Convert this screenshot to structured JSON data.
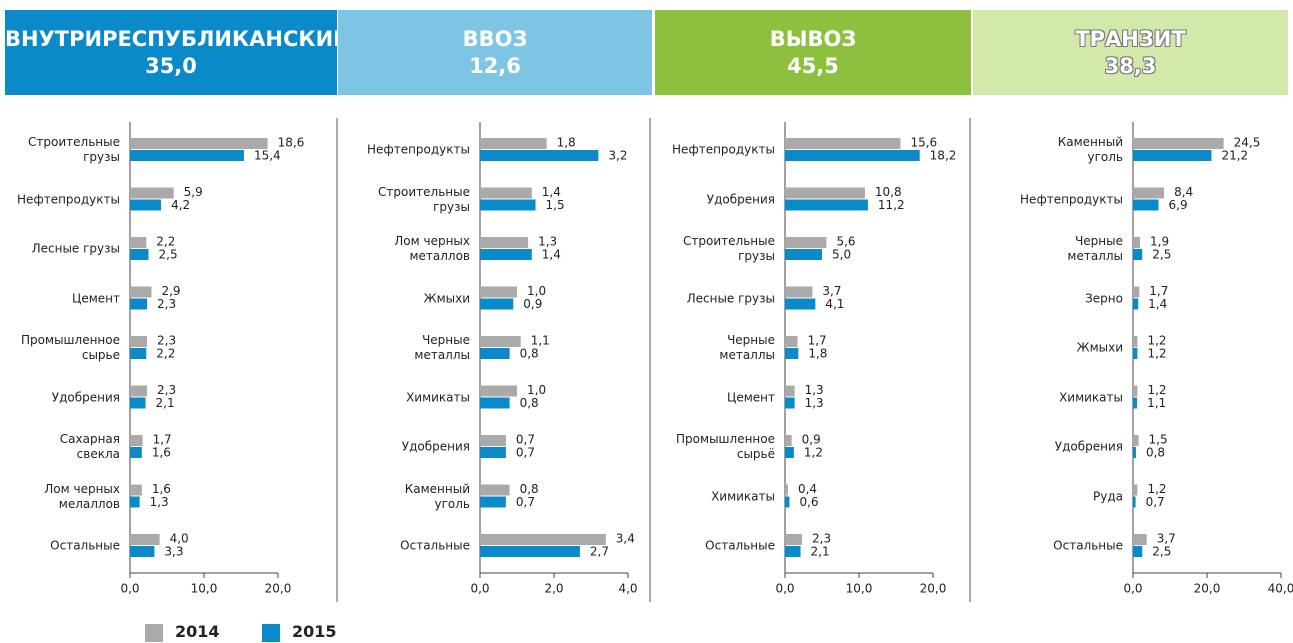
{
  "chart_data": [
    {
      "type": "bar",
      "orientation": "horizontal",
      "title": "ВНУТРИРЕСПУБЛИКАНСКИЕ",
      "subtitle": "35,0",
      "header_color": "#0a8ac9",
      "categories": [
        "Строительные\nгрузы",
        "Нефтепродукты",
        "Лесные грузы",
        "Цемент",
        "Промышленное\nсырье",
        "Удобрения",
        "Сахарная\nсвекла",
        "Лом черных\nмелаллов",
        "Остальные"
      ],
      "series": [
        {
          "values": [
            18.6,
            5.9,
            2.2,
            2.9,
            2.3,
            2.3,
            1.7,
            1.6,
            4.0
          ],
          "value_labels": [
            "18,6",
            "5,9",
            "2,2",
            "2,9",
            "2,3",
            "2,3",
            "1,7",
            "1,6",
            "4,0"
          ]
        },
        {
          "values": [
            15.4,
            4.2,
            2.5,
            2.3,
            2.2,
            2.1,
            1.6,
            1.3,
            3.3
          ],
          "value_labels": [
            "15,4",
            "4,2",
            "2,5",
            "2,3",
            "2,2",
            "2,1",
            "1,6",
            "1,3",
            "3,3"
          ]
        }
      ],
      "xlim": [
        0,
        20
      ],
      "xticks": [
        {
          "value": 0,
          "label": "0,0"
        },
        {
          "value": 10,
          "label": "10,0"
        },
        {
          "value": 20,
          "label": "20,0"
        }
      ]
    },
    {
      "type": "bar",
      "orientation": "horizontal",
      "title": "ВВОЗ",
      "subtitle": "12,6",
      "header_color": "#7ec5e5",
      "categories": [
        "Нефтепродукты",
        "Строительные\nгрузы",
        "Лом черных\nметаллов",
        "Жмыхи",
        "Черные\nметаллы",
        "Химикаты",
        "Удобрения",
        "Каменный\nуголь",
        "Остальные"
      ],
      "series": [
        {
          "values": [
            1.8,
            1.4,
            1.3,
            1.0,
            1.1,
            1.0,
            0.7,
            0.8,
            3.4
          ],
          "value_labels": [
            "1,8",
            "1,4",
            "1,3",
            "1,0",
            "1,1",
            "1,0",
            "0,7",
            "0,8",
            "3,4"
          ]
        },
        {
          "values": [
            3.2,
            1.5,
            1.4,
            0.9,
            0.8,
            0.8,
            0.7,
            0.7,
            2.7
          ],
          "value_labels": [
            "3,2",
            "1,5",
            "1,4",
            "0,9",
            "0,8",
            "0,8",
            "0,7",
            "0,7",
            "2,7"
          ]
        }
      ],
      "xlim": [
        0,
        4
      ],
      "xticks": [
        {
          "value": 0,
          "label": "0,0"
        },
        {
          "value": 2,
          "label": "2,0"
        },
        {
          "value": 4,
          "label": "4,0"
        }
      ]
    },
    {
      "type": "bar",
      "orientation": "horizontal",
      "title": "ВЫВОЗ",
      "subtitle": "45,5",
      "header_color": "#8dc03f",
      "categories": [
        "Нефтепродукты",
        "Удобрения",
        "Строительные\nгрузы",
        "Лесные грузы",
        "Черные\nметаллы",
        "Цемент",
        "Промышленное\nсырьё",
        "Химикаты",
        "Остальные"
      ],
      "series": [
        {
          "values": [
            15.6,
            10.8,
            5.6,
            3.7,
            1.7,
            1.3,
            0.9,
            0.4,
            2.3
          ],
          "value_labels": [
            "15,6",
            "10,8",
            "5,6",
            "3,7",
            "1,7",
            "1,3",
            "0,9",
            "0,4",
            "2,3"
          ]
        },
        {
          "values": [
            18.2,
            11.2,
            5.0,
            4.1,
            1.8,
            1.3,
            1.2,
            0.6,
            2.1
          ],
          "value_labels": [
            "18,2",
            "11,2",
            "5,0",
            "4,1",
            "1,8",
            "1,3",
            "1,2",
            "0,6",
            "2,1"
          ]
        }
      ],
      "xlim": [
        0,
        20
      ],
      "xticks": [
        {
          "value": 0,
          "label": "0,0"
        },
        {
          "value": 10,
          "label": "10,0"
        },
        {
          "value": 20,
          "label": "20,0"
        }
      ]
    },
    {
      "type": "bar",
      "orientation": "horizontal",
      "title": "ТРАНЗИТ",
      "subtitle": "38,3",
      "header_color": "#d3e9a9",
      "categories": [
        "Каменный\nуголь",
        "Нефтепродукты",
        "Черные\nметаллы",
        "Зерно",
        "Жмыхи",
        "Химикаты",
        "Удобрения",
        "Руда",
        "Остальные"
      ],
      "series": [
        {
          "values": [
            24.5,
            8.4,
            1.9,
            1.7,
            1.2,
            1.2,
            1.5,
            1.2,
            3.7
          ],
          "value_labels": [
            "24,5",
            "8,4",
            "1,9",
            "1,7",
            "1,2",
            "1,2",
            "1,5",
            "1,2",
            "3,7"
          ]
        },
        {
          "values": [
            21.2,
            6.9,
            2.5,
            1.4,
            1.2,
            1.1,
            0.8,
            0.7,
            2.5
          ],
          "value_labels": [
            "21,2",
            "6,9",
            "2,5",
            "1,4",
            "1,2",
            "1,1",
            "0,8",
            "0,7",
            "2,5"
          ]
        }
      ],
      "xlim": [
        0,
        40
      ],
      "xticks": [
        {
          "value": 0,
          "label": "0,0"
        },
        {
          "value": 20,
          "label": "20,0"
        },
        {
          "value": 40,
          "label": "40,0"
        }
      ]
    }
  ],
  "legend": [
    {
      "name": "2014",
      "color": "#aaaaaa"
    },
    {
      "name": "2015",
      "color": "#0a8ac9"
    }
  ]
}
